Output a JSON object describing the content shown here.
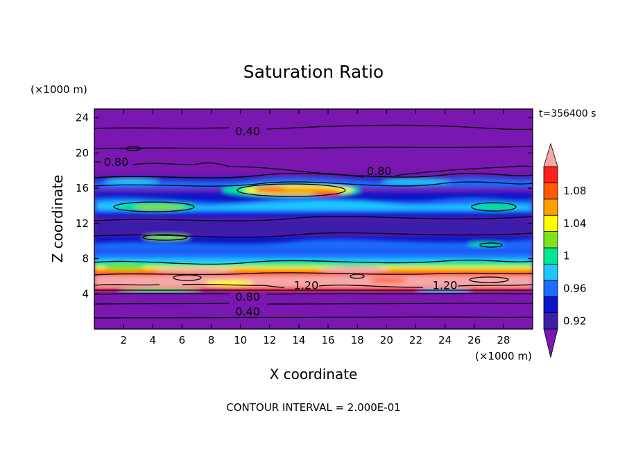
{
  "chart_data": {
    "type": "heatmap",
    "title": "Saturation Ratio",
    "xlabel": "X coordinate",
    "ylabel": "Z coordinate",
    "x_unit": "(×1000 m)",
    "y_unit": "(×1000 m)",
    "time_label": "t=356400 s",
    "footer": "CONTOUR INTERVAL = 2.000E-01",
    "xlim": [
      0,
      30
    ],
    "ylim": [
      0,
      25
    ],
    "x_ticks": [
      2,
      4,
      6,
      8,
      10,
      12,
      14,
      16,
      18,
      20,
      22,
      24,
      26,
      28
    ],
    "y_ticks": [
      4,
      8,
      12,
      16,
      20,
      24
    ],
    "colorbar": {
      "levels": [
        0.92,
        0.94,
        0.96,
        0.98,
        1.0,
        1.02,
        1.04,
        1.06,
        1.08,
        1.1
      ],
      "tick_labels": [
        "0.92",
        "0.96",
        "1",
        "1.04",
        "1.08"
      ],
      "colors": [
        "#7a17b0",
        "#3a1fa8",
        "#0d14c8",
        "#1e6bff",
        "#1ec8ff",
        "#00e892",
        "#7ee31c",
        "#ffff00",
        "#ffa000",
        "#ff5a00",
        "#ff1e1e",
        "#f5a8a8"
      ],
      "extend": "both"
    },
    "contour_labels": [
      {
        "text": "0.40",
        "x": 10.5,
        "z": 22.5
      },
      {
        "text": "0.80",
        "x": 1.5,
        "z": 19.0
      },
      {
        "text": "0.80",
        "x": 19.5,
        "z": 18.0
      },
      {
        "text": "1.20",
        "x": 14.5,
        "z": 5.0
      },
      {
        "text": "1.20",
        "x": 24.0,
        "z": 5.0
      },
      {
        "text": "0.80",
        "x": 10.5,
        "z": 3.7
      },
      {
        "text": "0.40",
        "x": 10.5,
        "z": 2.0
      }
    ]
  }
}
